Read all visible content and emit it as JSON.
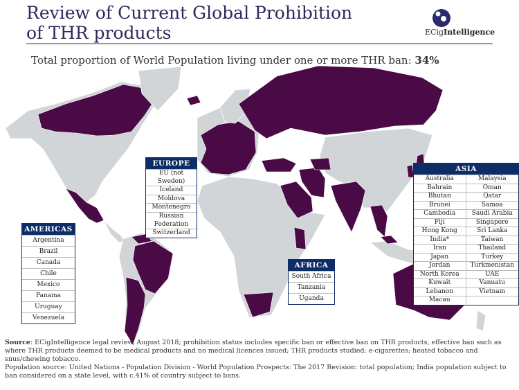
{
  "header": {
    "title_line1": "Review of Current Global Prohibition",
    "title_line2": "of THR products",
    "logo_text_prefix": "ECig",
    "logo_text_bold": "Intelligence"
  },
  "subtitle": {
    "text": "Total proportion of World Population living under one or more THR ban: ",
    "value": "34%"
  },
  "colors": {
    "ban": "#4a0a46",
    "no_ban": "#d2d5d8",
    "box_header": "#0e2c66",
    "title": "#2b2a5c"
  },
  "regions": {
    "europe": {
      "title": "EUROPE",
      "countries": [
        "EU (not Sweden)",
        "Iceland",
        "Moldova",
        "Montenegro",
        "Russian Federation",
        "Switzerland"
      ]
    },
    "americas": {
      "title": "AMERICAS",
      "countries": [
        "Argentina",
        "Brazil",
        "Canada",
        "Chile",
        "Mexico",
        "Panama",
        "Uruguay",
        "Venezuela"
      ]
    },
    "africa": {
      "title": "AFRICA",
      "countries": [
        "South Africa",
        "Tanzania",
        "Uganda"
      ]
    },
    "asia": {
      "title": "ASIA",
      "countries": [
        "Australia",
        "Malaysia",
        "Bahrain",
        "Oman",
        "Bhutan",
        "Qatar",
        "Brunei",
        "Samoa",
        "Cambodia",
        "Saudi Arabia",
        "Fiji",
        "Singapore",
        "Hong Kong",
        "Sri Lanka",
        "India*",
        "Taiwan",
        "Iran",
        "Thailand",
        "Japan",
        "Turkey",
        "Jordan",
        "Turkmenistan",
        "North Korea",
        "UAE",
        "Kuwait",
        "Vanuatu",
        "Lebanon",
        "Vietnam",
        "Macau",
        ""
      ]
    }
  },
  "source": {
    "label": "Source",
    "text": ": ECigIntelligence legal review, August 2018; prohibition status includes specific ban or effective ban on THR products, effective ban such as where THR products deemed to be medical products and no medical licences issued; THR products studied: e-cigarettes; heated tobacco and snus/chewing tobacco.",
    "population": "Population source: United Nations - Population Division - World Population Prospects: The 2017 Revision: total population; India population subject to ban considered on a state level, with c.41% of country subject to bans."
  }
}
